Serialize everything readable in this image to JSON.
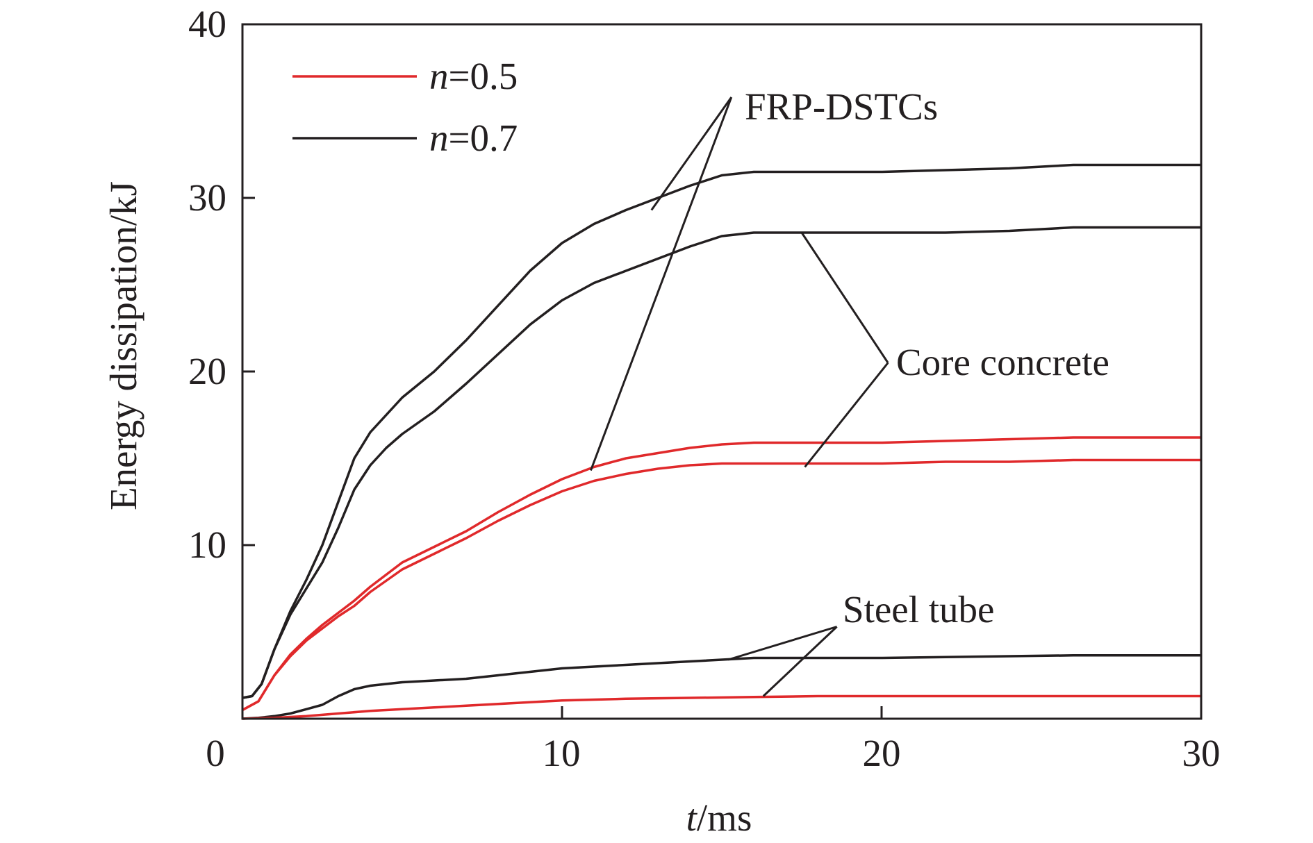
{
  "chart_data": {
    "type": "line",
    "title": "",
    "xlabel_var": "t",
    "xlabel_unit": "/ms",
    "ylabel": "Energy dissipation/kJ",
    "xlim": [
      0,
      30
    ],
    "ylim": [
      0,
      40
    ],
    "xticks": [
      "0",
      "10",
      "20",
      "30"
    ],
    "yticks": [
      "10",
      "20",
      "30",
      "40"
    ],
    "grid": false,
    "legend_position": "top-left",
    "legend": [
      {
        "var": "n",
        "text": "=0.5",
        "color": "#e0292b"
      },
      {
        "var": "n",
        "text": "=0.7",
        "color": "#231f20"
      }
    ],
    "annotations": {
      "frp": "FRP-DSTCs",
      "core": "Core concrete",
      "steel": "Steel tube"
    },
    "series": [
      {
        "component": "FRP-DSTCs",
        "n": "0.7",
        "color": "#231f20",
        "x": [
          0,
          0.3,
          0.6,
          1,
          1.5,
          2,
          2.5,
          3,
          3.5,
          4,
          4.5,
          5,
          6,
          7,
          8,
          9,
          10,
          11,
          12,
          13,
          14,
          15,
          16,
          17,
          18,
          20,
          22,
          24,
          26,
          28,
          30
        ],
        "y": [
          1.2,
          1.3,
          2.0,
          4.0,
          6.2,
          8.0,
          10.0,
          12.5,
          15.0,
          16.5,
          17.5,
          18.5,
          20.0,
          21.8,
          23.8,
          25.8,
          27.4,
          28.5,
          29.3,
          30.0,
          30.7,
          31.3,
          31.5,
          31.5,
          31.5,
          31.5,
          31.6,
          31.7,
          31.9,
          31.9,
          31.9
        ]
      },
      {
        "component": "Core concrete",
        "n": "0.7",
        "color": "#231f20",
        "x": [
          0,
          0.3,
          0.6,
          1,
          1.5,
          2,
          2.5,
          3,
          3.5,
          4,
          4.5,
          5,
          6,
          7,
          8,
          9,
          10,
          11,
          12,
          13,
          14,
          15,
          16,
          17,
          18,
          20,
          22,
          24,
          26,
          28,
          30
        ],
        "y": [
          1.2,
          1.3,
          2.0,
          4.0,
          6.0,
          7.5,
          9.0,
          11.0,
          13.2,
          14.6,
          15.6,
          16.4,
          17.7,
          19.3,
          21.0,
          22.7,
          24.1,
          25.1,
          25.8,
          26.5,
          27.2,
          27.8,
          28.0,
          28.0,
          28.0,
          28.0,
          28.0,
          28.1,
          28.3,
          28.3,
          28.3
        ]
      },
      {
        "component": "FRP-DSTCs",
        "n": "0.5",
        "color": "#e0292b",
        "x": [
          0,
          0.5,
          1,
          1.5,
          2,
          2.5,
          3,
          3.5,
          4,
          5,
          6,
          7,
          8,
          9,
          10,
          11,
          12,
          13,
          14,
          15,
          16,
          18,
          20,
          22,
          24,
          26,
          28,
          30
        ],
        "y": [
          0.5,
          1.0,
          2.5,
          3.7,
          4.6,
          5.4,
          6.1,
          6.8,
          7.6,
          9.0,
          9.9,
          10.8,
          11.9,
          12.9,
          13.8,
          14.5,
          15.0,
          15.3,
          15.6,
          15.8,
          15.9,
          15.9,
          15.9,
          16.0,
          16.1,
          16.2,
          16.2,
          16.2
        ]
      },
      {
        "component": "Core concrete",
        "n": "0.5",
        "color": "#e0292b",
        "x": [
          0,
          0.5,
          1,
          1.5,
          2,
          2.5,
          3,
          3.5,
          4,
          5,
          6,
          7,
          8,
          9,
          10,
          11,
          12,
          13,
          14,
          15,
          16,
          18,
          20,
          22,
          24,
          26,
          28,
          30
        ],
        "y": [
          0.5,
          1.0,
          2.5,
          3.6,
          4.5,
          5.2,
          5.9,
          6.5,
          7.3,
          8.6,
          9.5,
          10.4,
          11.4,
          12.3,
          13.1,
          13.7,
          14.1,
          14.4,
          14.6,
          14.7,
          14.7,
          14.7,
          14.7,
          14.8,
          14.8,
          14.9,
          14.9,
          14.9
        ]
      },
      {
        "component": "Steel tube",
        "n": "0.7",
        "color": "#231f20",
        "x": [
          0,
          0.5,
          1,
          1.5,
          2,
          2.5,
          3,
          3.5,
          4,
          5,
          6,
          7,
          8,
          9,
          10,
          12,
          14,
          16,
          18,
          20,
          22,
          24,
          26,
          28,
          30
        ],
        "y": [
          0.0,
          0.05,
          0.15,
          0.3,
          0.55,
          0.8,
          1.3,
          1.7,
          1.9,
          2.1,
          2.2,
          2.3,
          2.5,
          2.7,
          2.9,
          3.1,
          3.3,
          3.5,
          3.5,
          3.5,
          3.55,
          3.6,
          3.65,
          3.65,
          3.65
        ]
      },
      {
        "component": "Steel tube",
        "n": "0.5",
        "color": "#e0292b",
        "x": [
          0,
          1,
          2,
          3,
          4,
          5,
          6,
          7,
          8,
          9,
          10,
          12,
          14,
          16,
          18,
          20,
          22,
          24,
          26,
          28,
          30
        ],
        "y": [
          0.0,
          0.05,
          0.15,
          0.3,
          0.45,
          0.55,
          0.65,
          0.75,
          0.85,
          0.95,
          1.05,
          1.15,
          1.2,
          1.25,
          1.3,
          1.3,
          1.3,
          1.3,
          1.3,
          1.3,
          1.3
        ]
      }
    ]
  }
}
